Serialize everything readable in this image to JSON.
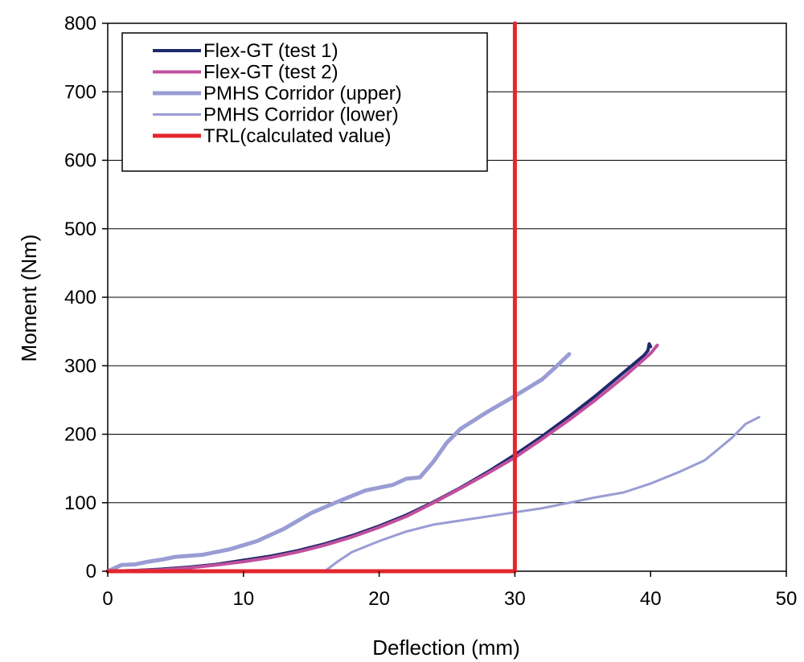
{
  "chart_data": {
    "type": "line",
    "xlabel": "Deflection (mm)",
    "ylabel": "Moment (Nm)",
    "xlim": [
      0,
      50
    ],
    "ylim": [
      0,
      800
    ],
    "xticks": [
      "0",
      "10",
      "20",
      "30",
      "40",
      "50"
    ],
    "yticks": [
      "0",
      "100",
      "200",
      "300",
      "400",
      "500",
      "600",
      "700",
      "800"
    ],
    "grid": "horizontal",
    "legend": "top-left",
    "series": [
      {
        "name": "Flex-GT (test 1)",
        "color": "#1f2a6b",
        "width": 4,
        "x": [
          0,
          2,
          4,
          6,
          8,
          10,
          12,
          14,
          16,
          18,
          20,
          22,
          24,
          26,
          28,
          30,
          32,
          34,
          36,
          38,
          39.5,
          39.8,
          39.9,
          40.0
        ],
        "y": [
          0,
          1,
          3,
          6,
          10,
          16,
          22,
          30,
          40,
          52,
          66,
          82,
          101,
          122,
          145,
          170,
          197,
          226,
          257,
          290,
          315,
          322,
          332,
          328
        ]
      },
      {
        "name": "Flex-GT (test 2)",
        "color": "#c0509e",
        "width": 4,
        "x": [
          0,
          2,
          4,
          6,
          8,
          10,
          12,
          14,
          16,
          18,
          20,
          22,
          24,
          26,
          28,
          30,
          32,
          34,
          36,
          38,
          40,
          40.5
        ],
        "y": [
          0,
          1,
          2,
          5,
          9,
          14,
          20,
          28,
          38,
          50,
          64,
          80,
          100,
          121,
          143,
          166,
          193,
          221,
          251,
          283,
          318,
          330
        ]
      },
      {
        "name": "PMHS Corridor (upper)",
        "color": "#9a9cd4",
        "width": 5,
        "x": [
          0,
          1,
          2,
          3,
          4,
          5,
          7,
          9,
          11,
          13,
          15,
          17,
          19,
          21,
          22,
          23,
          24,
          25,
          26,
          28,
          30,
          32,
          33,
          34
        ],
        "y": [
          0,
          9,
          10,
          14,
          17,
          21,
          24,
          32,
          44,
          62,
          85,
          102,
          118,
          126,
          135,
          137,
          160,
          188,
          208,
          233,
          256,
          280,
          298,
          317
        ]
      },
      {
        "name": "PMHS Corridor (lower)",
        "color": "#9a9cd4",
        "width": 3,
        "x": [
          16,
          17,
          18,
          20,
          22,
          24,
          26,
          28,
          30,
          32,
          34,
          36,
          38,
          40,
          42,
          44,
          46,
          47,
          48
        ],
        "y": [
          0,
          15,
          28,
          44,
          58,
          68,
          74,
          80,
          86,
          92,
          100,
          108,
          115,
          128,
          144,
          162,
          195,
          215,
          225
        ]
      },
      {
        "name": "TRL(calculated value)",
        "color": "#e3262c",
        "width": 5,
        "x": [
          0,
          30,
          30
        ],
        "y": [
          0,
          0,
          800
        ]
      }
    ]
  }
}
